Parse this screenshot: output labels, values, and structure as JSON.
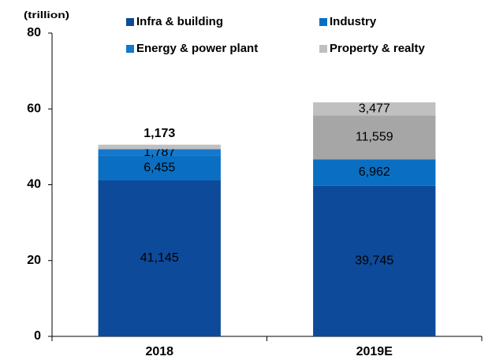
{
  "chart_data": {
    "type": "stacked_bar",
    "y_label": "(trillion)",
    "categories": [
      "2018",
      "2019E"
    ],
    "series": [
      {
        "name": "Infra & building",
        "color": "#0d4a99",
        "values": [
          41.145,
          39.745
        ],
        "value_labels": [
          "41,145",
          "39,745"
        ]
      },
      {
        "name": "Industry",
        "color": "#0a6fc2",
        "values": [
          6.455,
          6.962
        ],
        "value_labels": [
          "6,455",
          "6,962"
        ]
      },
      {
        "name": "Energy & power plant",
        "color": "#1478cc",
        "colors": [
          "#1478cc",
          "#a6a6a6"
        ],
        "values": [
          1.787,
          11.559
        ],
        "value_labels": [
          "1,787",
          "11,559"
        ]
      },
      {
        "name": "Property & realty",
        "color": "#c0c0c0",
        "values": [
          1.173,
          3.477
        ],
        "value_labels": [
          "1,173",
          "3,477"
        ]
      }
    ],
    "ylim": [
      0,
      80
    ],
    "yticks": [
      0,
      20,
      40,
      60,
      80
    ]
  }
}
